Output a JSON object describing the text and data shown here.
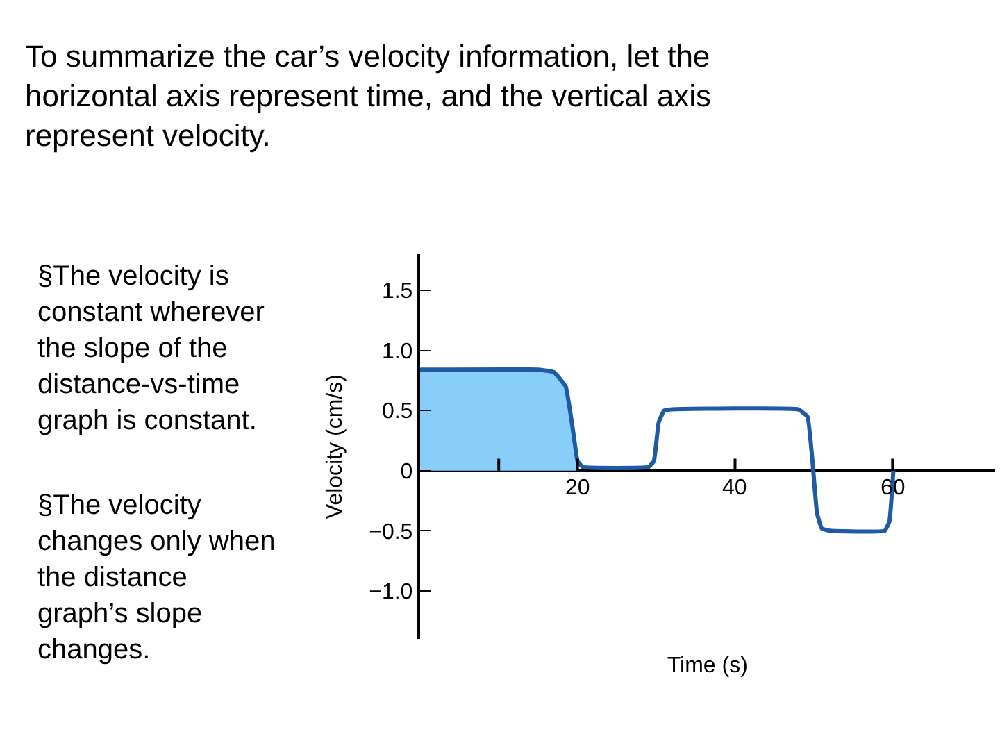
{
  "chart_data": {
    "type": "line",
    "title": "To summarize the car’s velocity information, let the horizontal axis represent time, and the vertical axis represent velocity.",
    "annotations": [
      "§The velocity is constant wherever the slope of the distance-vs-time graph is constant.",
      "§The velocity changes only when the distance graph’s slope changes."
    ],
    "xlabel": "Time (s)",
    "ylabel": "Velocity (cm/s)",
    "series": [
      {
        "type": "area",
        "color": "#87cefa",
        "x": [
          0,
          15,
          17,
          18.5,
          19.5,
          20
        ],
        "values": [
          0.84,
          0.84,
          0.82,
          0.7,
          0.3,
          0.08
        ]
      },
      {
        "color": "#1f5aa6",
        "x": [
          0,
          15,
          17,
          18.5,
          19.5,
          20,
          20.7,
          29,
          29.7,
          30.3,
          31,
          32,
          48,
          49.2,
          49.8,
          50.4,
          51,
          52,
          59,
          59.6,
          60.1
        ],
        "values": [
          0.84,
          0.84,
          0.82,
          0.7,
          0.3,
          0.08,
          0.03,
          0.03,
          0.08,
          0.4,
          0.5,
          0.51,
          0.51,
          0.45,
          0.1,
          -0.35,
          -0.48,
          -0.5,
          -0.5,
          -0.42,
          0
        ]
      }
    ],
    "xlim": [
      0,
      73
    ],
    "ylim": [
      -1.4,
      1.8
    ],
    "xticks": [
      {
        "value": 10,
        "label": null
      },
      20,
      40,
      60
    ],
    "yticks": [
      {
        "value": -1.0,
        "label": "−1.0"
      },
      {
        "value": -0.5,
        "label": "−0.5"
      },
      0,
      {
        "value": 0.5,
        "label": "0.5"
      },
      {
        "value": 1.0,
        "label": "1.0"
      },
      {
        "value": 1.5,
        "label": "1.5"
      }
    ],
    "marker": "none",
    "line_style": "solid"
  }
}
